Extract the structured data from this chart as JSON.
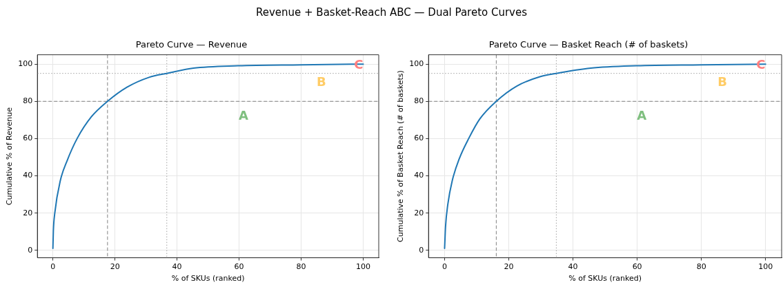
{
  "chart_data": [
    {
      "type": "line",
      "title": "Pareto Curve — Revenue",
      "xlabel": "% of SKUs (ranked)",
      "ylabel": "Cumulative % of Revenue",
      "x": [
        0,
        0.15,
        0.6,
        2.4,
        4.6,
        7.8,
        12.4,
        17.6,
        23.9,
        31,
        36.7,
        45.3,
        59.7,
        80,
        100
      ],
      "series": [
        {
          "color": "#1f77b4",
          "values": [
            1,
            10.5,
            19.9,
            37.5,
            48.2,
            60,
            71.7,
            80,
            87.6,
            92.9,
            95,
            97.8,
            99.1,
            99.6,
            100
          ]
        }
      ],
      "xlim": [
        -5,
        105
      ],
      "ylim": [
        -4,
        105
      ],
      "xticks": [
        0,
        20,
        40,
        60,
        80,
        100
      ],
      "yticks": [
        0,
        20,
        40,
        60,
        80,
        100
      ],
      "grid": true,
      "legend": false,
      "marker": "none",
      "line_style": "solid",
      "ref_lines": [
        {
          "axis": "y",
          "value": 80,
          "color": "#808080",
          "line_style": "dashed"
        },
        {
          "axis": "x",
          "value": 17.6,
          "color": "#808080",
          "line_style": "dashed"
        },
        {
          "axis": "y",
          "value": 95,
          "color": "#a0a0a0",
          "line_style": "dotted"
        },
        {
          "axis": "x",
          "value": 36.7,
          "color": "#a0a0a0",
          "line_style": "dotted"
        }
      ],
      "annotations": [
        "Revenue + Basket-Reach ABC — Dual Pareto Curves",
        "A",
        "B",
        "C"
      ]
    },
    {
      "type": "line",
      "title": "Pareto Curve — Basket Reach (# of baskets)",
      "xlabel": "% of SKUs (ranked)",
      "ylabel": "Cumulative % of Basket Reach (# of baskets)",
      "x": [
        0,
        0.3,
        1,
        2.4,
        4.6,
        7.5,
        11,
        16.1,
        22.5,
        29.7,
        34.8,
        45.5,
        59.8,
        80,
        100
      ],
      "series": [
        {
          "color": "#1f77b4",
          "values": [
            1,
            12.8,
            24.6,
            37.5,
            49.3,
            60,
            70.6,
            80,
            88.2,
            93.2,
            95,
            97.8,
            99.1,
            99.6,
            100
          ]
        }
      ],
      "xlim": [
        -5,
        105
      ],
      "ylim": [
        -4,
        105
      ],
      "xticks": [
        0,
        20,
        40,
        60,
        80,
        100
      ],
      "yticks": [
        0,
        20,
        40,
        60,
        80,
        100
      ],
      "grid": true,
      "legend": false,
      "marker": "none",
      "line_style": "solid",
      "ref_lines": [
        {
          "axis": "y",
          "value": 80,
          "color": "#808080",
          "line_style": "dashed"
        },
        {
          "axis": "x",
          "value": 16.1,
          "color": "#808080",
          "line_style": "dashed"
        },
        {
          "axis": "y",
          "value": 95,
          "color": "#a0a0a0",
          "line_style": "dotted"
        },
        {
          "axis": "x",
          "value": 34.8,
          "color": "#a0a0a0",
          "line_style": "dotted"
        }
      ],
      "annotations": [
        "A",
        "B",
        "C"
      ]
    }
  ]
}
